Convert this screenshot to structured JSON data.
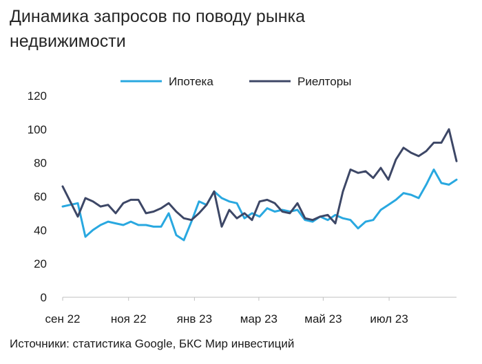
{
  "chart_data": {
    "type": "line",
    "title": "Динамика запросов по поводу рынка недвижимости",
    "source": "Источники: статистика Google, БКС Мир инвестиций",
    "xlabel": "",
    "ylabel": "",
    "ylim": [
      0,
      120
    ],
    "yticks": [
      "0",
      "20",
      "40",
      "60",
      "80",
      "100",
      "120"
    ],
    "xticks": [
      {
        "label": "сен 22",
        "week": 0
      },
      {
        "label": "ноя 22",
        "week": 8.7
      },
      {
        "label": "янв 23",
        "week": 17.4
      },
      {
        "label": "мар 23",
        "week": 25.9
      },
      {
        "label": "май 23",
        "week": 34.4
      },
      {
        "label": "июл 23",
        "week": 43.1
      }
    ],
    "grid": false,
    "legend_position": "top-center",
    "series": [
      {
        "name": "Ипотека",
        "color": "#29a8e0",
        "values": [
          54,
          55,
          56,
          36,
          40,
          43,
          45,
          44,
          43,
          45,
          43,
          43,
          42,
          42,
          50,
          37,
          34,
          45,
          57,
          55,
          63,
          59,
          57,
          56,
          47,
          50,
          48,
          53,
          51,
          52,
          51,
          52,
          46,
          45,
          48,
          46,
          49,
          47,
          46,
          41,
          45,
          46,
          52,
          55,
          58,
          62,
          61,
          59,
          67,
          76,
          68,
          67,
          70
        ]
      },
      {
        "name": "Риелторы",
        "color": "#3d4766",
        "values": [
          66,
          57,
          48,
          59,
          57,
          54,
          55,
          50,
          56,
          58,
          58,
          50,
          51,
          53,
          56,
          51,
          47,
          46,
          50,
          55,
          63,
          42,
          52,
          47,
          50,
          46,
          57,
          58,
          56,
          51,
          50,
          56,
          47,
          46,
          48,
          49,
          44,
          63,
          76,
          74,
          75,
          71,
          77,
          70,
          82,
          89,
          86,
          84,
          87,
          92,
          92,
          100,
          81
        ]
      }
    ]
  }
}
